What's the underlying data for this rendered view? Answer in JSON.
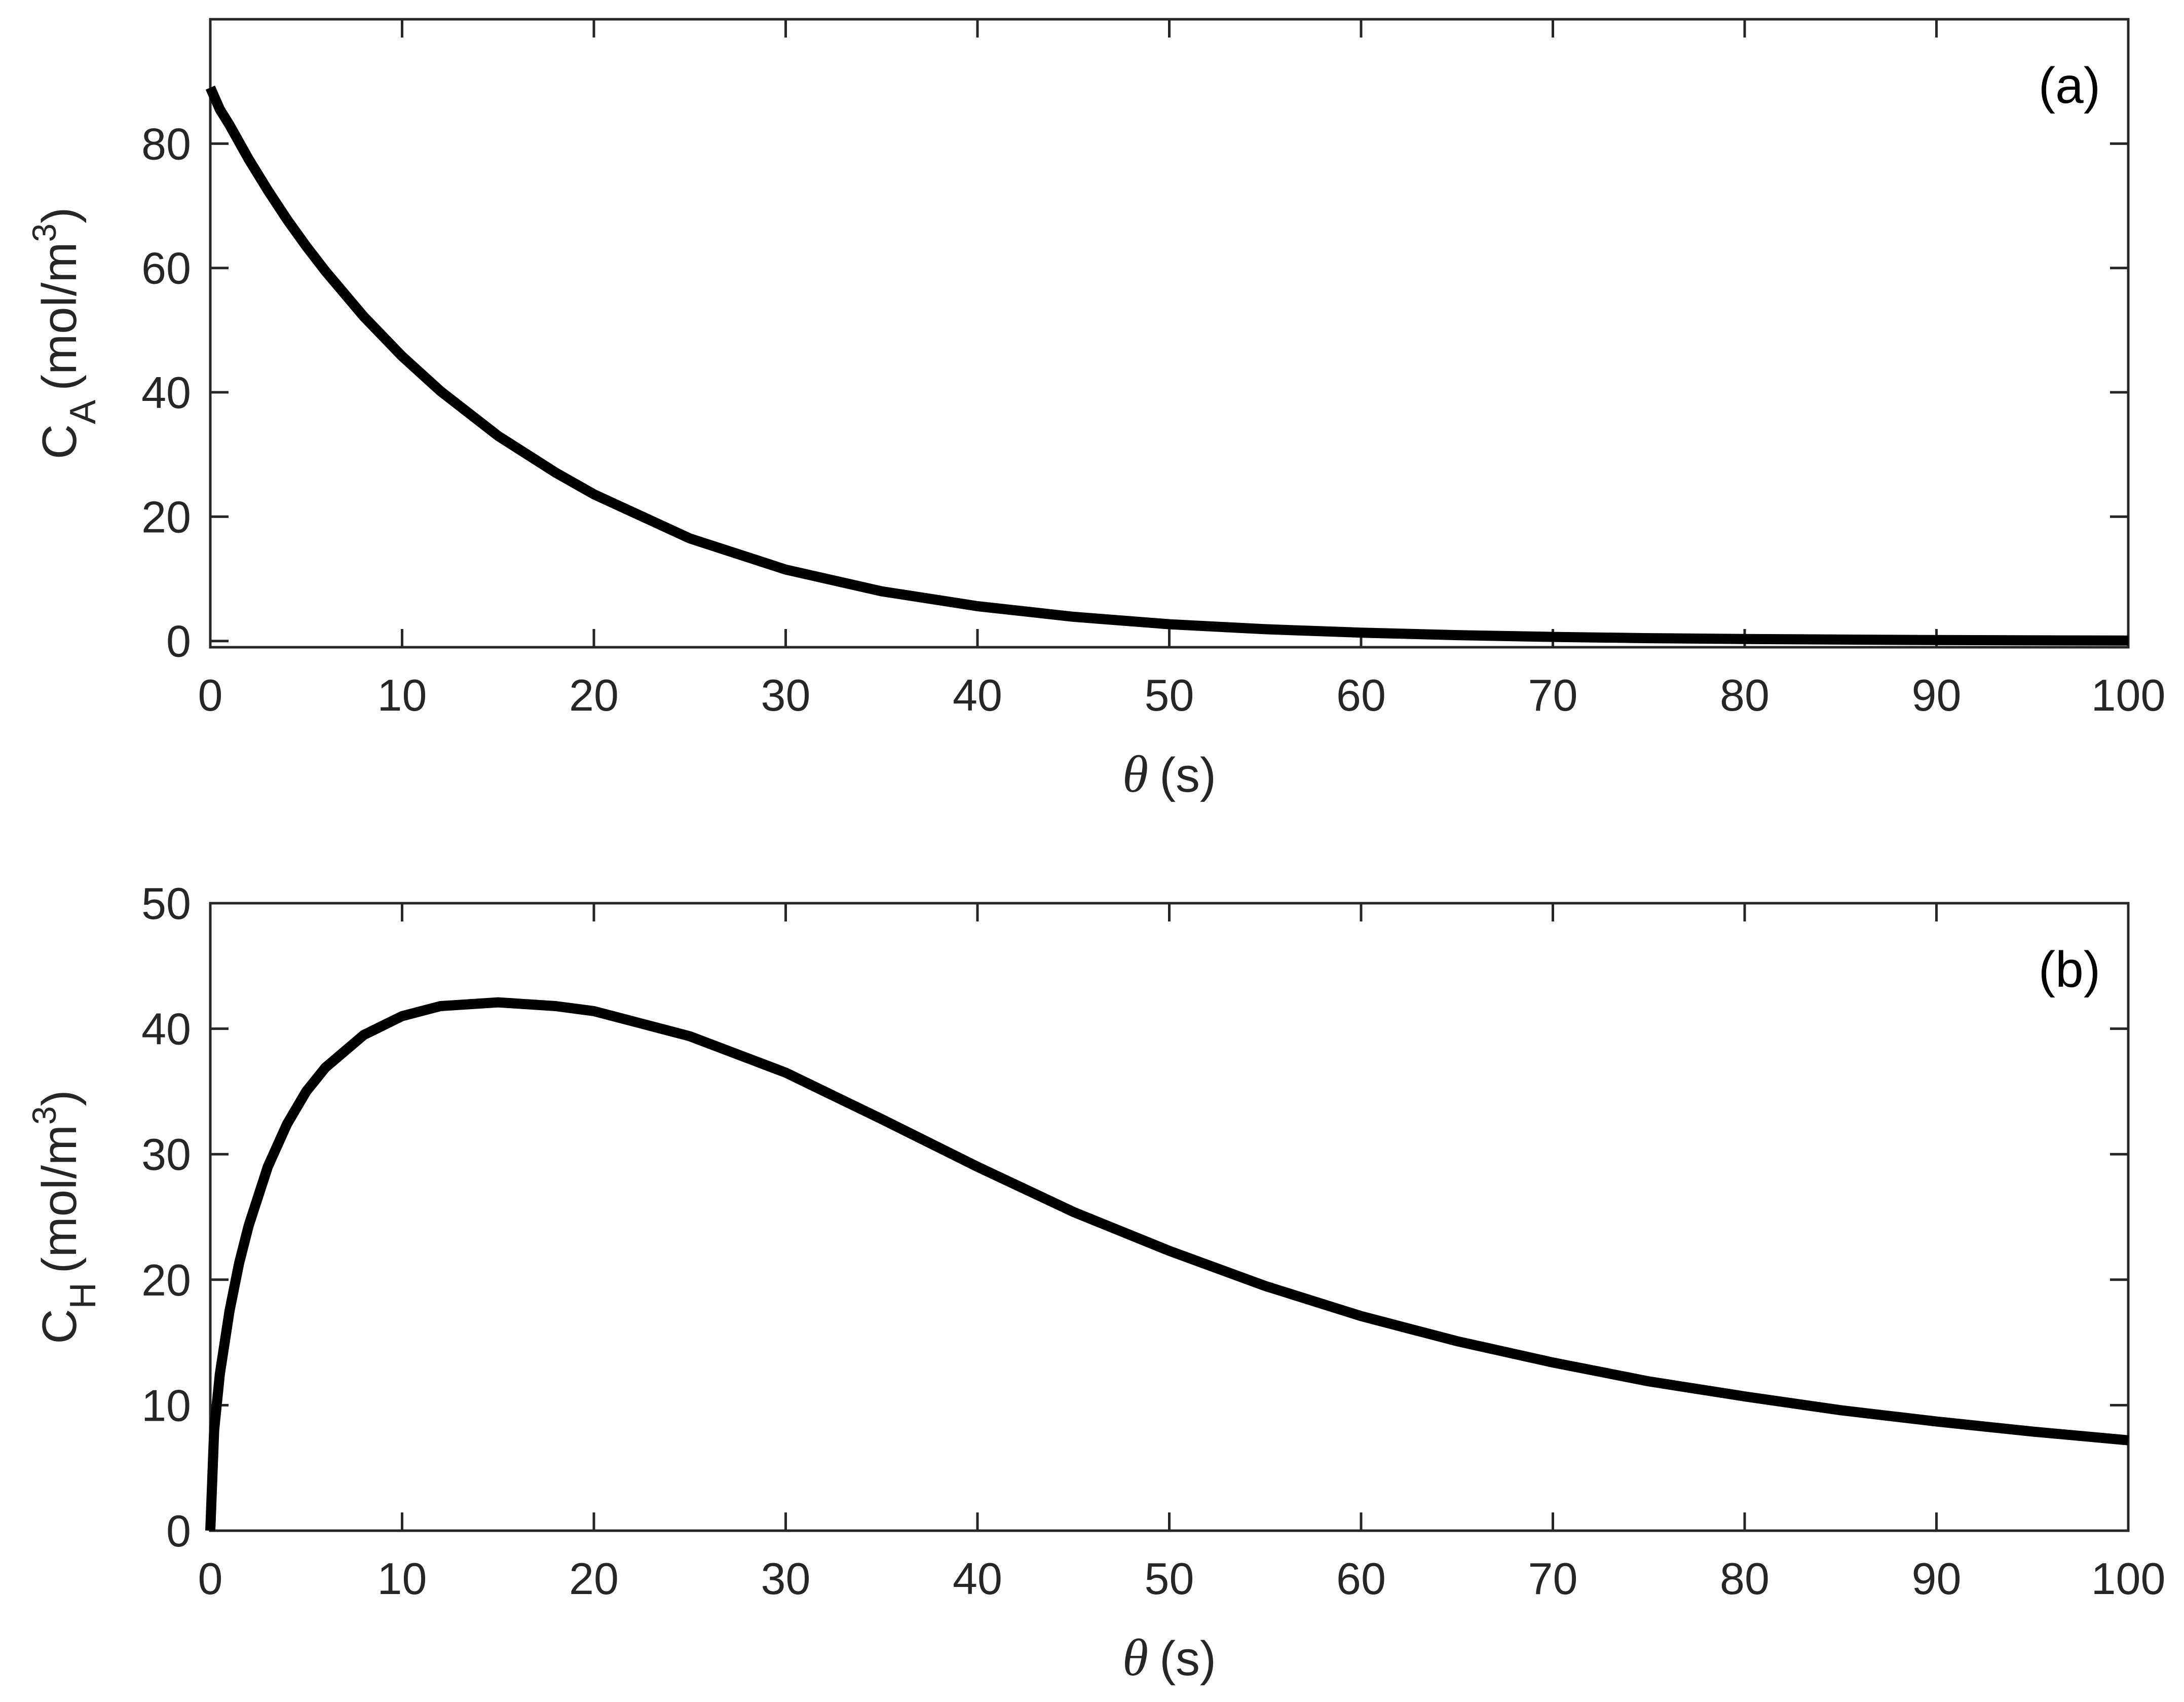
{
  "chart_data": [
    {
      "type": "line",
      "panel_label": "(a)",
      "xlabel": {
        "symbol": "θ",
        "unit": "(s)"
      },
      "ylabel": {
        "base": "C",
        "subscript": "A",
        "unit_prefix": "(mol/m",
        "unit_sup": "3",
        "unit_suffix": ")"
      },
      "xlim": [
        0,
        100
      ],
      "ylim": [
        -1,
        100
      ],
      "xticks": [
        0,
        10,
        20,
        30,
        40,
        50,
        60,
        70,
        80,
        90,
        100
      ],
      "yticks": [
        0,
        20,
        40,
        60,
        80
      ],
      "line_color": "#000000",
      "grid": false,
      "series": [
        {
          "x": [
            0,
            0.5,
            1,
            2,
            3,
            4,
            5,
            6,
            8,
            10,
            12,
            15,
            18,
            20,
            25,
            30,
            35,
            40,
            45,
            50,
            55,
            60,
            65,
            70,
            75,
            80,
            90,
            100
          ],
          "values": [
            89,
            85.5,
            83,
            77.5,
            72.5,
            67.8,
            63.5,
            59.5,
            52.2,
            45.8,
            40.2,
            33.0,
            27.1,
            23.6,
            16.5,
            11.5,
            8.0,
            5.6,
            3.9,
            2.7,
            1.9,
            1.35,
            0.95,
            0.66,
            0.46,
            0.32,
            0.16,
            0.08
          ]
        }
      ]
    },
    {
      "type": "line",
      "panel_label": "(b)",
      "xlabel": {
        "symbol": "θ",
        "unit": "(s)"
      },
      "ylabel": {
        "base": "C",
        "subscript": "H",
        "unit_prefix": "(mol/m",
        "unit_sup": "3",
        "unit_suffix": ")"
      },
      "xlim": [
        0,
        100
      ],
      "ylim": [
        0,
        50
      ],
      "xticks": [
        0,
        10,
        20,
        30,
        40,
        50,
        60,
        70,
        80,
        90,
        100
      ],
      "yticks": [
        0,
        10,
        20,
        30,
        40,
        50
      ],
      "line_color": "#000000",
      "grid": false,
      "series": [
        {
          "x": [
            0,
            0.2,
            0.5,
            1,
            1.5,
            2,
            3,
            4,
            5,
            6,
            8,
            10,
            12,
            15,
            18,
            20,
            25,
            30,
            35,
            40,
            45,
            50,
            55,
            60,
            65,
            70,
            75,
            80,
            85,
            90,
            95,
            100
          ],
          "values": [
            0,
            8,
            12.5,
            17.5,
            21.3,
            24.3,
            29.0,
            32.4,
            35.0,
            36.9,
            39.5,
            41.0,
            41.8,
            42.1,
            41.8,
            41.4,
            39.4,
            36.5,
            32.8,
            29.0,
            25.4,
            22.3,
            19.5,
            17.1,
            15.1,
            13.4,
            11.9,
            10.7,
            9.6,
            8.7,
            7.9,
            7.2
          ]
        }
      ]
    }
  ]
}
